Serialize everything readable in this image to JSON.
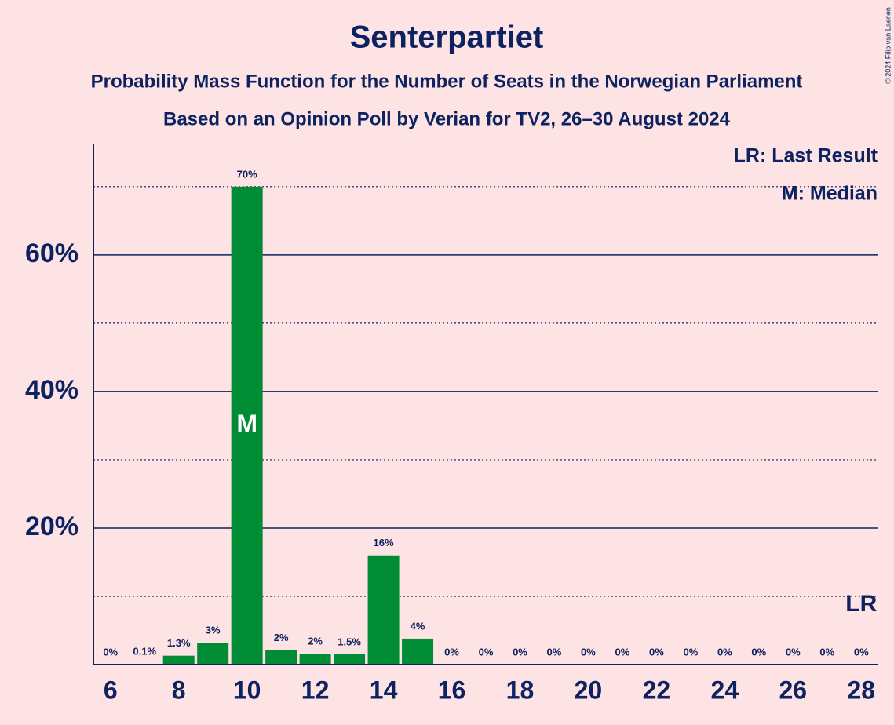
{
  "chart_data": {
    "type": "bar",
    "title": "Senterpartiet",
    "subtitle": "Probability Mass Function for the Number of Seats in the Norwegian Parliament",
    "subtitle2": "Based on an Opinion Poll by Verian for TV2, 26–30 August 2024",
    "copyright": "© 2024 Filip van Laenen",
    "x": [
      6,
      7,
      8,
      9,
      10,
      11,
      12,
      13,
      14,
      15,
      16,
      17,
      18,
      19,
      20,
      21,
      22,
      23,
      24,
      25,
      26,
      27,
      28
    ],
    "values": [
      0,
      0.1,
      1.3,
      3.2,
      70,
      2.1,
      1.6,
      1.5,
      16,
      3.8,
      0,
      0,
      0,
      0,
      0,
      0,
      0,
      0,
      0,
      0,
      0,
      0,
      0
    ],
    "value_labels": [
      "0%",
      "0.1%",
      "1.3%",
      "3%",
      "70%",
      "2%",
      "2%",
      "1.5%",
      "16%",
      "4%",
      "0%",
      "0%",
      "0%",
      "0%",
      "0%",
      "0%",
      "0%",
      "0%",
      "0%",
      "0%",
      "0%",
      "0%",
      "0%"
    ],
    "color": "#008c35",
    "xlim": [
      5.5,
      28.5
    ],
    "xticks": [
      6,
      8,
      10,
      12,
      14,
      16,
      18,
      20,
      22,
      24,
      26,
      28
    ],
    "ylim": [
      0,
      76.3
    ],
    "yticks": [
      {
        "value": 20,
        "label": "20%"
      },
      {
        "value": 40,
        "label": "40%"
      },
      {
        "value": 60,
        "label": "60%"
      }
    ],
    "minor_yticks": [
      10,
      30,
      50,
      70
    ],
    "grid": true,
    "median": {
      "x": 10,
      "label": "M"
    },
    "last_result": {
      "x": 28,
      "label": "LR"
    },
    "legend": [
      "LR: Last Result",
      "M: Median"
    ]
  }
}
